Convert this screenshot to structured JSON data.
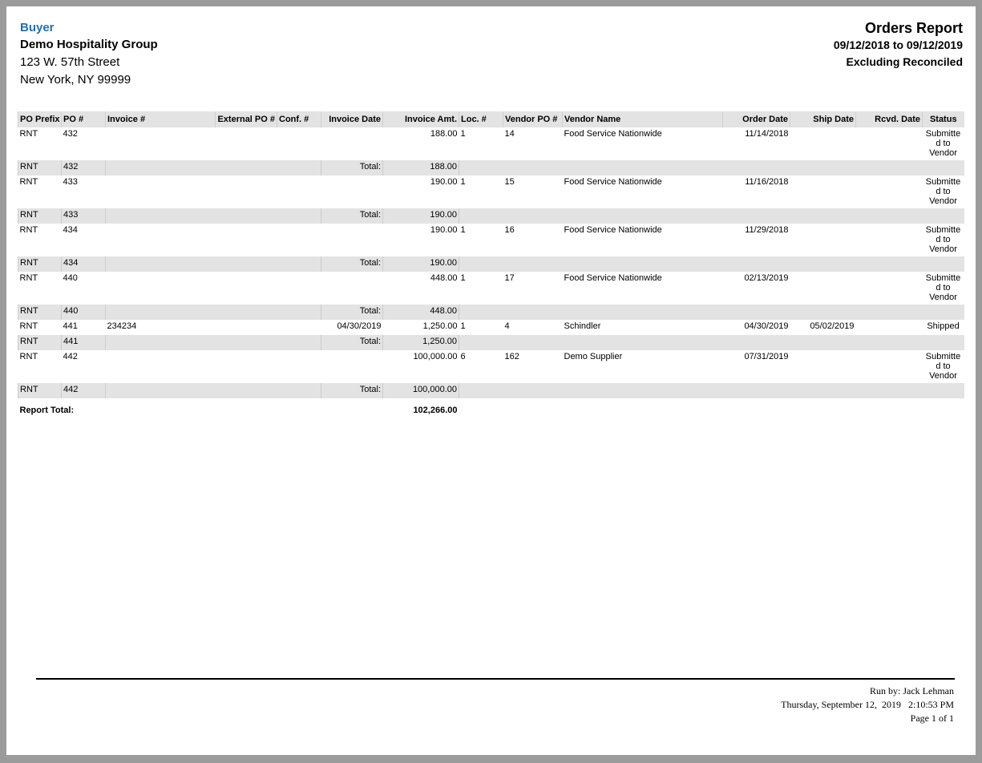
{
  "buyer": {
    "label": "Buyer",
    "name": "Demo Hospitality Group",
    "address1": "123 W. 57th Street",
    "address2": "New York, NY 99999"
  },
  "report": {
    "title": "Orders Report",
    "date_range": "09/12/2018 to 09/12/2019",
    "filter": "Excluding Reconciled"
  },
  "columns": [
    "PO Prefix",
    "PO #",
    "Invoice #",
    "External PO #",
    "Conf. #",
    "Invoice Date",
    "Invoice Amt.",
    "Loc. #",
    "Vendor PO #",
    "Vendor Name",
    "Order Date",
    "Ship Date",
    "Rcvd. Date",
    "Status"
  ],
  "total_label": "Total:",
  "orders": [
    {
      "prefix": "RNT",
      "po": "432",
      "invoice": "",
      "ext_po": "",
      "conf": "",
      "invoice_date": "",
      "amount": "188.00",
      "loc": "1",
      "vendor_po": "14",
      "vendor": "Food Service Nationwide",
      "order_date": "11/14/2018",
      "ship_date": "",
      "rcvd_date": "",
      "status": "Submitted to Vendor",
      "total": "188.00"
    },
    {
      "prefix": "RNT",
      "po": "433",
      "invoice": "",
      "ext_po": "",
      "conf": "",
      "invoice_date": "",
      "amount": "190.00",
      "loc": "1",
      "vendor_po": "15",
      "vendor": "Food Service Nationwide",
      "order_date": "11/16/2018",
      "ship_date": "",
      "rcvd_date": "",
      "status": "Submitted to Vendor",
      "total": "190.00"
    },
    {
      "prefix": "RNT",
      "po": "434",
      "invoice": "",
      "ext_po": "",
      "conf": "",
      "invoice_date": "",
      "amount": "190.00",
      "loc": "1",
      "vendor_po": "16",
      "vendor": "Food Service Nationwide",
      "order_date": "11/29/2018",
      "ship_date": "",
      "rcvd_date": "",
      "status": "Submitted to Vendor",
      "total": "190.00"
    },
    {
      "prefix": "RNT",
      "po": "440",
      "invoice": "",
      "ext_po": "",
      "conf": "",
      "invoice_date": "",
      "amount": "448.00",
      "loc": "1",
      "vendor_po": "17",
      "vendor": "Food Service Nationwide",
      "order_date": "02/13/2019",
      "ship_date": "",
      "rcvd_date": "",
      "status": "Submitted to Vendor",
      "total": "448.00"
    },
    {
      "prefix": "RNT",
      "po": "441",
      "invoice": "234234",
      "ext_po": "",
      "conf": "",
      "invoice_date": "04/30/2019",
      "amount": "1,250.00",
      "loc": "1",
      "vendor_po": "4",
      "vendor": "Schindler",
      "order_date": "04/30/2019",
      "ship_date": "05/02/2019",
      "rcvd_date": "",
      "status": "Shipped",
      "total": "1,250.00"
    },
    {
      "prefix": "RNT",
      "po": "442",
      "invoice": "",
      "ext_po": "",
      "conf": "",
      "invoice_date": "",
      "amount": "100,000.00",
      "loc": "6",
      "vendor_po": "162",
      "vendor": "Demo Supplier",
      "order_date": "07/31/2019",
      "ship_date": "",
      "rcvd_date": "",
      "status": "Submitted to Vendor",
      "total": "100,000.00"
    }
  ],
  "report_total": {
    "label": "Report Total:",
    "value": "102,266.00"
  },
  "footer": {
    "run_by": "Run by: Jack Lehman",
    "datetime": "Thursday, September 12,  2019   2:10:53 PM",
    "page": "Page 1 of 1"
  }
}
